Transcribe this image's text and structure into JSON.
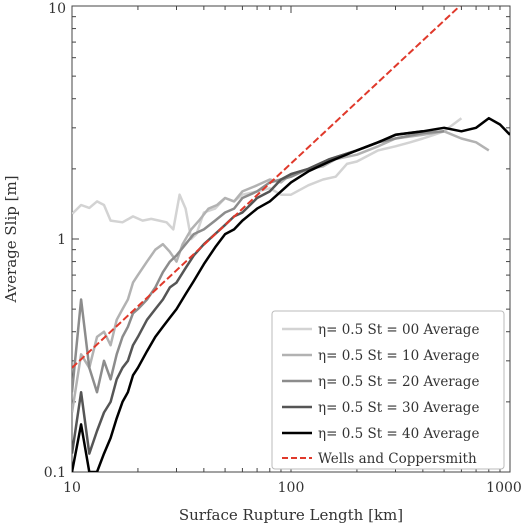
{
  "chart_data": {
    "type": "line",
    "title": "",
    "xlabel": "Surface Rupture Length [km]",
    "ylabel": "Average Slip [m]",
    "xscale": "log",
    "yscale": "log",
    "xlim": [
      10,
      1000
    ],
    "ylim": [
      0.1,
      10
    ],
    "x_ticks": [
      "10",
      "100",
      "1000"
    ],
    "y_ticks": [
      "0.1",
      "1",
      "10"
    ],
    "grid": false,
    "legend_position": "bottom-right",
    "series": [
      {
        "name": "η= 0.5 St = 00 Average",
        "color": "#d3d3d3",
        "x": [
          10,
          11,
          12,
          13,
          14,
          15,
          17,
          19,
          21,
          23,
          25,
          27,
          29,
          31,
          33,
          35,
          37,
          40,
          45,
          50,
          55,
          60,
          70,
          80,
          90,
          100,
          120,
          140,
          160,
          180,
          200,
          250,
          300,
          350,
          400,
          450,
          500,
          600
        ],
        "y": [
          1.28,
          1.4,
          1.36,
          1.45,
          1.4,
          1.2,
          1.18,
          1.25,
          1.2,
          1.22,
          1.2,
          1.18,
          1.1,
          1.55,
          1.35,
          1.0,
          1.05,
          1.3,
          1.35,
          1.5,
          1.45,
          1.55,
          1.6,
          1.65,
          1.55,
          1.55,
          1.7,
          1.8,
          1.85,
          2.1,
          2.15,
          2.4,
          2.5,
          2.6,
          2.7,
          2.8,
          2.9,
          3.3
        ]
      },
      {
        "name": "η= 0.5 St = 10 Average",
        "color": "#b2b2b2",
        "x": [
          10,
          11,
          12,
          13,
          14,
          15,
          16,
          17,
          18,
          19,
          20,
          22,
          24,
          26,
          28,
          30,
          32,
          35,
          38,
          42,
          46,
          50,
          55,
          60,
          70,
          80,
          90,
          100,
          120,
          140,
          160,
          200,
          250,
          300,
          400,
          500,
          600,
          700,
          800
        ],
        "y": [
          0.18,
          0.32,
          0.28,
          0.38,
          0.4,
          0.35,
          0.45,
          0.5,
          0.55,
          0.65,
          0.7,
          0.8,
          0.9,
          0.95,
          0.88,
          0.8,
          0.95,
          1.1,
          1.2,
          1.35,
          1.4,
          1.5,
          1.45,
          1.6,
          1.7,
          1.8,
          1.75,
          1.9,
          2.0,
          2.05,
          2.2,
          2.3,
          2.5,
          2.7,
          2.8,
          2.9,
          2.7,
          2.6,
          2.4
        ]
      },
      {
        "name": "η= 0.5 St = 20 Average",
        "color": "#8c8c8c",
        "x": [
          10,
          11,
          12,
          13,
          14,
          15,
          16,
          17,
          18,
          19,
          20,
          22,
          24,
          26,
          28,
          30,
          33,
          36,
          40,
          45,
          50,
          55,
          60,
          70,
          80,
          90,
          100,
          120,
          150,
          200,
          250,
          300,
          400,
          500
        ],
        "y": [
          0.22,
          0.55,
          0.28,
          0.22,
          0.3,
          0.25,
          0.32,
          0.38,
          0.42,
          0.48,
          0.5,
          0.55,
          0.62,
          0.72,
          0.8,
          0.85,
          0.95,
          1.05,
          1.1,
          1.2,
          1.3,
          1.35,
          1.5,
          1.6,
          1.75,
          1.8,
          1.85,
          2.0,
          2.2,
          2.4,
          2.6,
          2.7,
          2.85,
          2.9
        ]
      },
      {
        "name": "η= 0.5 St = 30 Average",
        "color": "#555555",
        "x": [
          10,
          11,
          12,
          13,
          14,
          15,
          16,
          17,
          18,
          19,
          20,
          22,
          24,
          26,
          28,
          30,
          33,
          36,
          40,
          45,
          50,
          55,
          60,
          70,
          80,
          90,
          100,
          120,
          150,
          200,
          250,
          300,
          400
        ],
        "y": [
          0.12,
          0.22,
          0.12,
          0.15,
          0.18,
          0.2,
          0.25,
          0.28,
          0.3,
          0.35,
          0.38,
          0.45,
          0.5,
          0.55,
          0.62,
          0.65,
          0.75,
          0.85,
          0.95,
          1.05,
          1.15,
          1.25,
          1.3,
          1.5,
          1.6,
          1.8,
          1.9,
          2.0,
          2.2,
          2.4,
          2.6,
          2.8,
          2.9
        ]
      },
      {
        "name": "η= 0.5 St = 40 Average",
        "color": "#000000",
        "x": [
          10,
          11,
          12,
          13,
          14,
          15,
          16,
          17,
          18,
          19,
          20,
          22,
          24,
          26,
          28,
          30,
          33,
          36,
          40,
          45,
          50,
          55,
          60,
          70,
          80,
          90,
          100,
          120,
          150,
          200,
          250,
          300,
          400,
          500,
          600,
          700,
          800,
          900,
          1000
        ],
        "y": [
          0.1,
          0.16,
          0.1,
          0.1,
          0.12,
          0.14,
          0.17,
          0.2,
          0.22,
          0.26,
          0.28,
          0.33,
          0.38,
          0.42,
          0.46,
          0.5,
          0.58,
          0.66,
          0.78,
          0.92,
          1.05,
          1.1,
          1.2,
          1.35,
          1.45,
          1.6,
          1.75,
          1.95,
          2.15,
          2.4,
          2.6,
          2.8,
          2.9,
          3.0,
          2.9,
          3.0,
          3.3,
          3.1,
          2.8
        ]
      },
      {
        "name": "Wells and Coppersmith",
        "color": "#e0392b",
        "dashed": true,
        "x": [
          10,
          590
        ],
        "y": [
          0.28,
          10
        ]
      }
    ]
  }
}
